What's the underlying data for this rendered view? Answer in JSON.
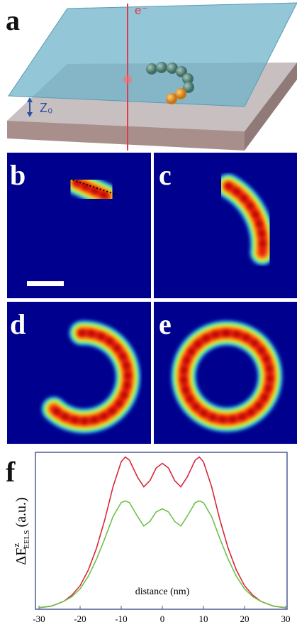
{
  "panels": {
    "a": {
      "letter": "a",
      "beam_label": "e⁻",
      "height_label": "Z₀"
    },
    "b": {
      "letter": "b"
    },
    "c": {
      "letter": "c"
    },
    "d": {
      "letter": "d"
    },
    "e": {
      "letter": "e"
    },
    "f": {
      "letter": "f"
    }
  },
  "chart_data": {
    "type": "line",
    "x_label": "distance (nm)",
    "y_label": {
      "main": "ΔE",
      "sup": "z",
      "sub": "EELS",
      "unit": "(a.u.)"
    },
    "x": [
      -30,
      -27,
      -24,
      -22,
      -20,
      -18,
      -16,
      -14,
      -12,
      -10,
      -9,
      -8,
      -6,
      -4.5,
      -3,
      -1.5,
      0,
      1.5,
      3,
      4.5,
      6,
      8,
      9,
      10,
      12,
      14,
      16,
      18,
      20,
      22,
      24,
      27,
      30
    ],
    "series": [
      {
        "color": "#d8283a",
        "values": [
          0.01,
          0.02,
          0.05,
          0.09,
          0.15,
          0.25,
          0.39,
          0.57,
          0.78,
          0.94,
          0.97,
          0.95,
          0.84,
          0.78,
          0.82,
          0.9,
          0.93,
          0.9,
          0.82,
          0.78,
          0.84,
          0.95,
          0.97,
          0.94,
          0.78,
          0.57,
          0.39,
          0.25,
          0.15,
          0.09,
          0.05,
          0.02,
          0.01
        ]
      },
      {
        "color": "#6cc24a",
        "values": [
          0.01,
          0.02,
          0.05,
          0.08,
          0.13,
          0.21,
          0.32,
          0.45,
          0.59,
          0.68,
          0.69,
          0.68,
          0.59,
          0.53,
          0.56,
          0.62,
          0.64,
          0.62,
          0.56,
          0.53,
          0.59,
          0.68,
          0.69,
          0.68,
          0.59,
          0.45,
          0.32,
          0.21,
          0.13,
          0.08,
          0.05,
          0.02,
          0.01
        ]
      }
    ],
    "xlim": [
      -30,
      30
    ],
    "ylim": [
      0,
      1
    ],
    "xticks": [
      -30,
      -20,
      -10,
      0,
      10,
      20,
      30
    ]
  }
}
